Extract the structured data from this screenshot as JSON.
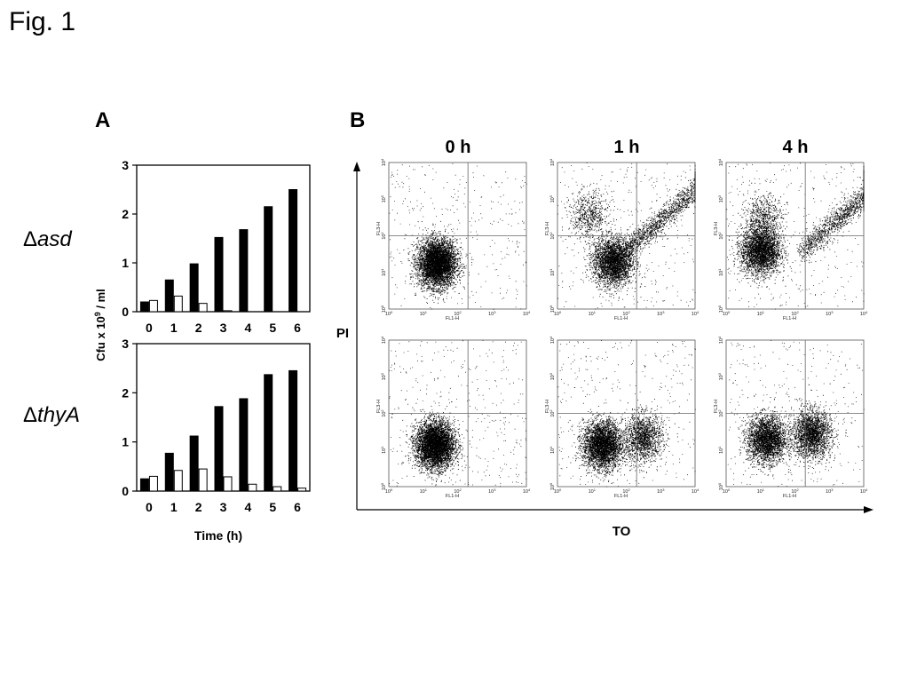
{
  "figure": {
    "title": "Fig. 1"
  },
  "panel_a": {
    "letter": "A",
    "ylabel_prefix": "Cfu x 10",
    "ylabel_exp": "9",
    "ylabel_suffix": " / ml",
    "xlabel": "Time (h)",
    "strain_symbol": "Δ",
    "strains": [
      "asd",
      "thyA"
    ]
  },
  "panel_b": {
    "letter": "B",
    "timepoints": [
      "0 h",
      "1 h",
      "4 h"
    ],
    "y_axis_label": "PI",
    "x_axis_label": "TO",
    "plot_x_label": "FL1-H",
    "plot_y_label": "FL3-H",
    "tick_base": "10",
    "tick_exponents": [
      "0",
      "1",
      "2",
      "3",
      "4"
    ]
  },
  "chart_data": [
    {
      "type": "bar",
      "strain": "Δasd",
      "categories": [
        "0",
        "1",
        "2",
        "3",
        "4",
        "5",
        "6"
      ],
      "series": [
        {
          "color": "#000000",
          "values": [
            0.2,
            0.65,
            0.98,
            1.52,
            1.68,
            2.15,
            2.5
          ]
        },
        {
          "color": "#ffffff",
          "values": [
            0.23,
            0.32,
            0.17,
            0.02,
            0.0,
            0.0,
            0.0
          ]
        }
      ],
      "xlabel": "Time (h)",
      "ylabel": "Cfu x 10⁹ / ml",
      "ylim": [
        0,
        3
      ],
      "yticks": [
        "0",
        "1",
        "2",
        "3"
      ]
    },
    {
      "type": "bar",
      "strain": "ΔthyA",
      "categories": [
        "0",
        "1",
        "2",
        "3",
        "4",
        "5",
        "6"
      ],
      "series": [
        {
          "color": "#000000",
          "values": [
            0.25,
            0.77,
            1.12,
            1.72,
            1.88,
            2.37,
            2.45
          ]
        },
        {
          "color": "#ffffff",
          "values": [
            0.3,
            0.42,
            0.45,
            0.29,
            0.14,
            0.09,
            0.06
          ]
        }
      ],
      "xlabel": "Time (h)",
      "ylabel": "Cfu x 10⁹ / ml",
      "ylim": [
        0,
        3
      ],
      "yticks": [
        "0",
        "1",
        "2",
        "3"
      ]
    },
    {
      "type": "scatter",
      "subtype": "flow-cytometry-dot-plots",
      "x_axis": "FL1-H (TO)",
      "y_axis": "FL3-H (PI)",
      "scale": "log",
      "xlim": [
        1,
        10000
      ],
      "ylim": [
        1,
        10000
      ],
      "quadrant_gates": {
        "x": 200,
        "y": 100
      },
      "columns": [
        "0 h",
        "1 h",
        "4 h"
      ],
      "rows": [
        "Δasd",
        "ΔthyA"
      ],
      "populations": [
        [
          [
            {
              "x": 25,
              "y": 18,
              "weight": 0.95
            }
          ],
          [
            {
              "x": 40,
              "y": 20,
              "weight": 0.6
            },
            {
              "x": 8,
              "y": 350,
              "weight": 0.12
            },
            {
              "x": 1200,
              "y": 300,
              "weight": 0.28,
              "diagonal": true
            }
          ],
          [
            {
              "x": 10,
              "y": 40,
              "weight": 0.6
            },
            {
              "x": 12,
              "y": 300,
              "weight": 0.12
            },
            {
              "x": 2000,
              "y": 300,
              "weight": 0.28,
              "diagonal": true
            }
          ]
        ],
        [
          [
            {
              "x": 22,
              "y": 14,
              "weight": 0.95
            }
          ],
          [
            {
              "x": 20,
              "y": 14,
              "weight": 0.7
            },
            {
              "x": 300,
              "y": 22,
              "weight": 0.3
            }
          ],
          [
            {
              "x": 15,
              "y": 20,
              "weight": 0.55
            },
            {
              "x": 300,
              "y": 28,
              "weight": 0.45
            }
          ]
        ]
      ]
    }
  ]
}
